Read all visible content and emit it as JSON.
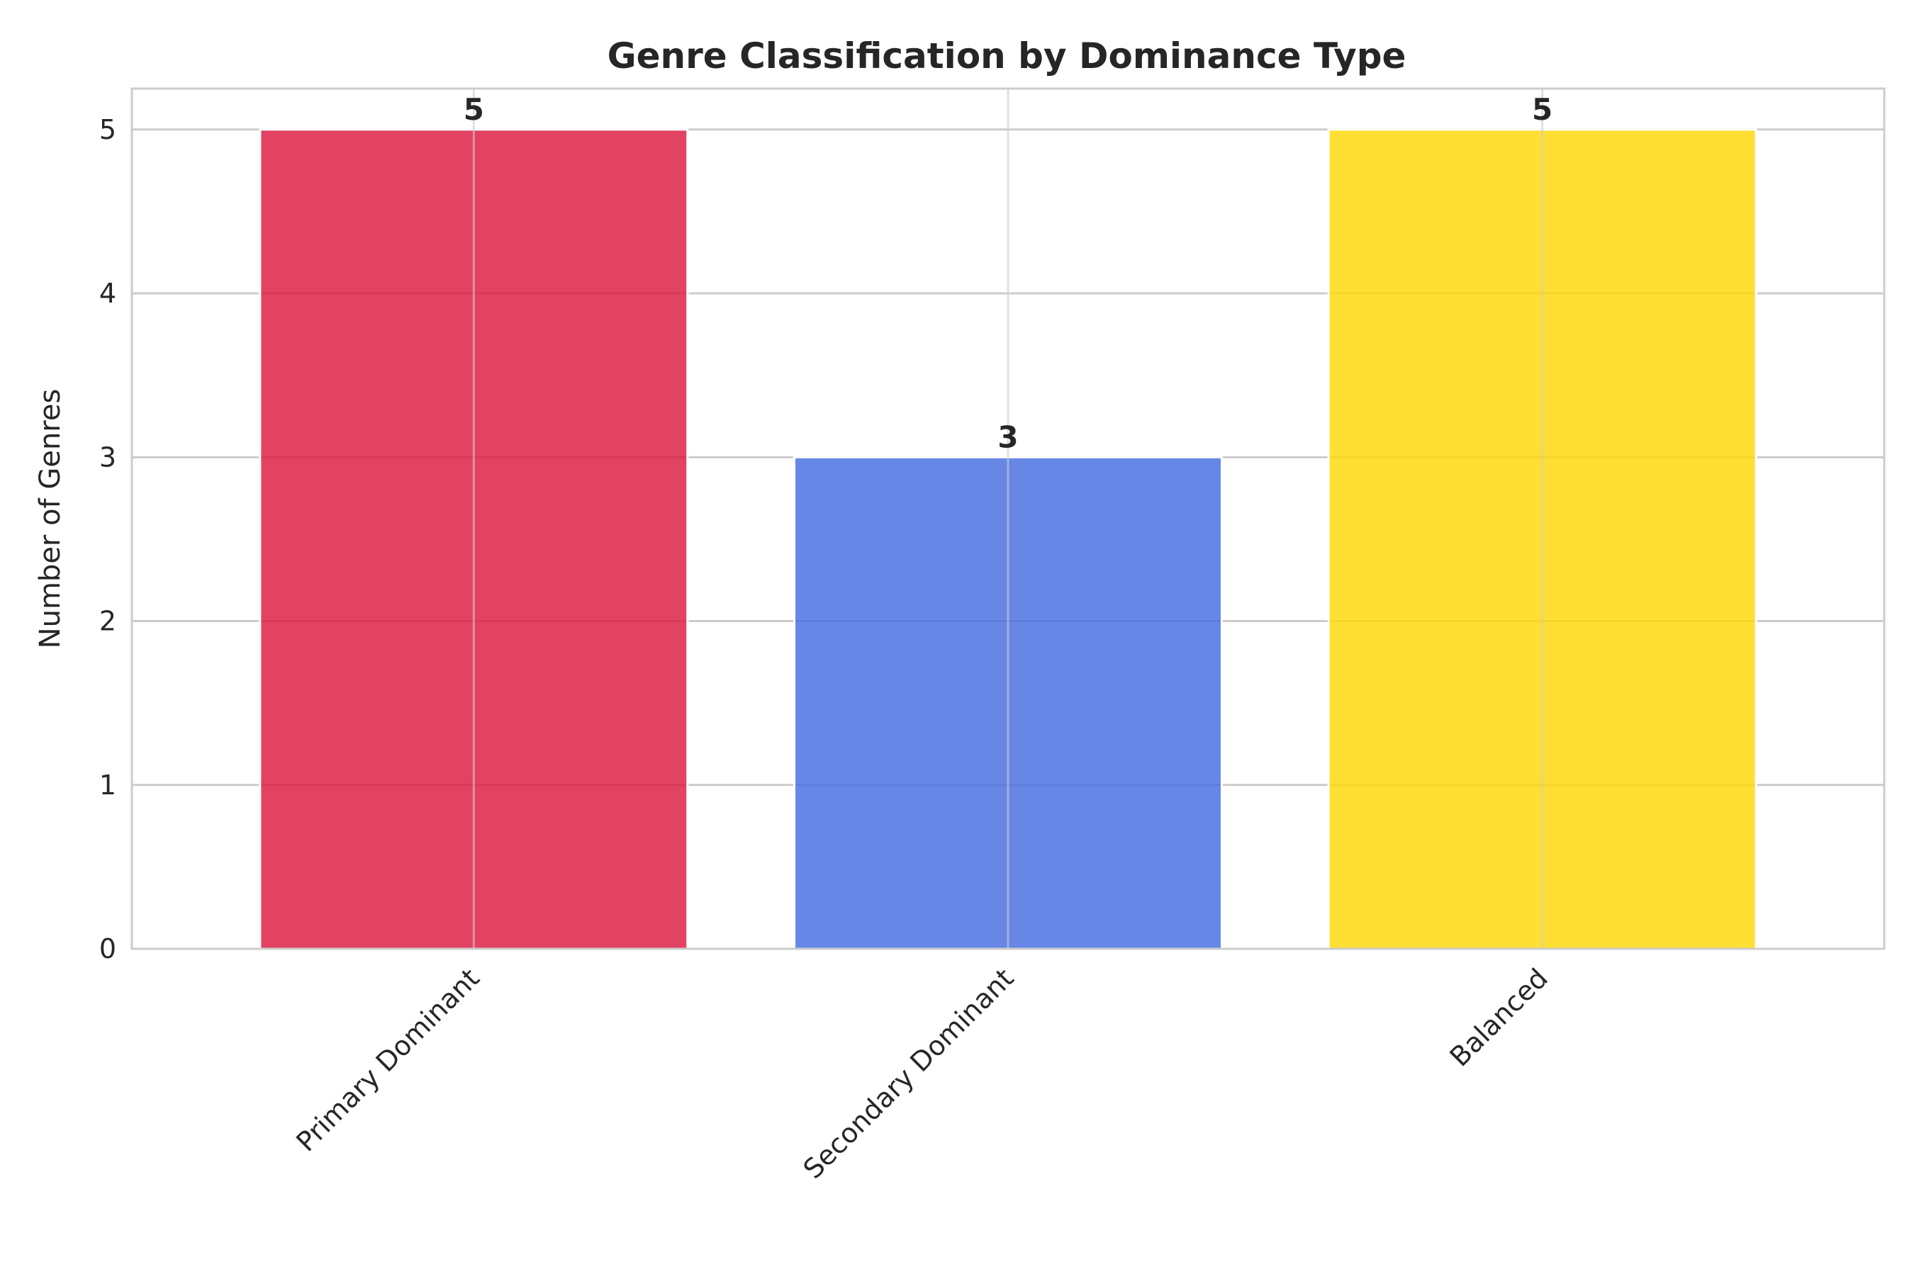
{
  "chart_data": {
    "type": "bar",
    "title": "Genre Classification by Dominance Type",
    "xlabel": "",
    "ylabel": "Number of Genres",
    "categories": [
      "Primary Dominant",
      "Secondary Dominant",
      "Balanced"
    ],
    "values": [
      5,
      3,
      5
    ],
    "value_labels": [
      "5",
      "3",
      "5"
    ],
    "colors": [
      "#dc143c",
      "#4169e1",
      "#ffd700"
    ],
    "ylim": [
      0,
      5.25
    ],
    "yticks": [
      0,
      1,
      2,
      3,
      4,
      5
    ],
    "grid": true,
    "legend": "none"
  }
}
